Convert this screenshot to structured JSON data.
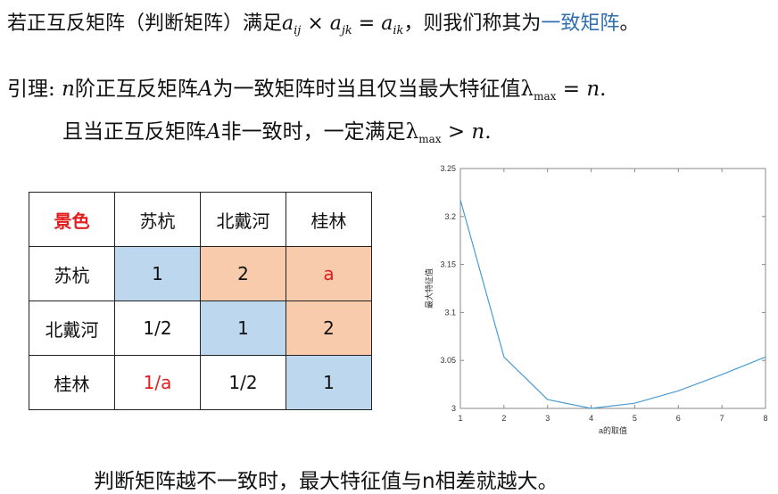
{
  "intro": {
    "prefix": "若正互反矩阵（判断矩阵）满足",
    "formula_a1": "a",
    "formula_s1": "ij",
    "formula_times": " × ",
    "formula_a2": "a",
    "formula_s2": "jk",
    "formula_eq": " = ",
    "formula_a3": "a",
    "formula_s3": "ik",
    "middle": "，则我们称其为",
    "term": "一致矩阵",
    "end": "。"
  },
  "lemma": {
    "line1_prefix": "引理: ",
    "n1": "n",
    "line1_text": "阶正互反矩阵",
    "A1": "A",
    "line1_text2": "为一致矩阵时当且仅当最大特征值",
    "lambda1": "λ",
    "max1": "max",
    "line1_end": " = ",
    "n2": "n",
    "dot1": ".",
    "line2_text": "且当正互反矩阵",
    "A2": "A",
    "line2_text2": "非一致时，一定满足",
    "lambda2": "λ",
    "max2": "max",
    "gt": " > ",
    "n3": "n",
    "dot2": "."
  },
  "matrix": {
    "header": [
      "景色",
      "苏杭",
      "北戴河",
      "桂林"
    ],
    "rows": [
      {
        "label": "苏杭",
        "cells": [
          "1",
          "2",
          "a"
        ]
      },
      {
        "label": "北戴河",
        "cells": [
          "1/2",
          "1",
          "2"
        ]
      },
      {
        "label": "桂林",
        "cells": [
          "1/a",
          "1/2",
          "1"
        ]
      }
    ]
  },
  "chart_data": {
    "type": "line",
    "x": [
      1,
      2,
      3,
      4,
      5,
      6,
      7,
      8
    ],
    "series": [
      {
        "values": [
          3.2174,
          3.0536,
          3.0092,
          3.0,
          3.0054,
          3.0183,
          3.0352,
          3.0536
        ]
      }
    ],
    "xlim": [
      1,
      8
    ],
    "ylim": [
      3.0,
      3.25
    ],
    "xticks": [
      "1",
      "2",
      "3",
      "4",
      "5",
      "6",
      "7",
      "8"
    ],
    "yticks": [
      "3",
      "3.05",
      "3.1",
      "3.15",
      "3.2",
      "3.25"
    ],
    "xlabel": "a的取值",
    "ylabel": "最大特征值",
    "line_color": "#4a9cd0",
    "grid": false
  },
  "conclusion": "判断矩阵越不一致时，最大特征值与n相差就越大。"
}
